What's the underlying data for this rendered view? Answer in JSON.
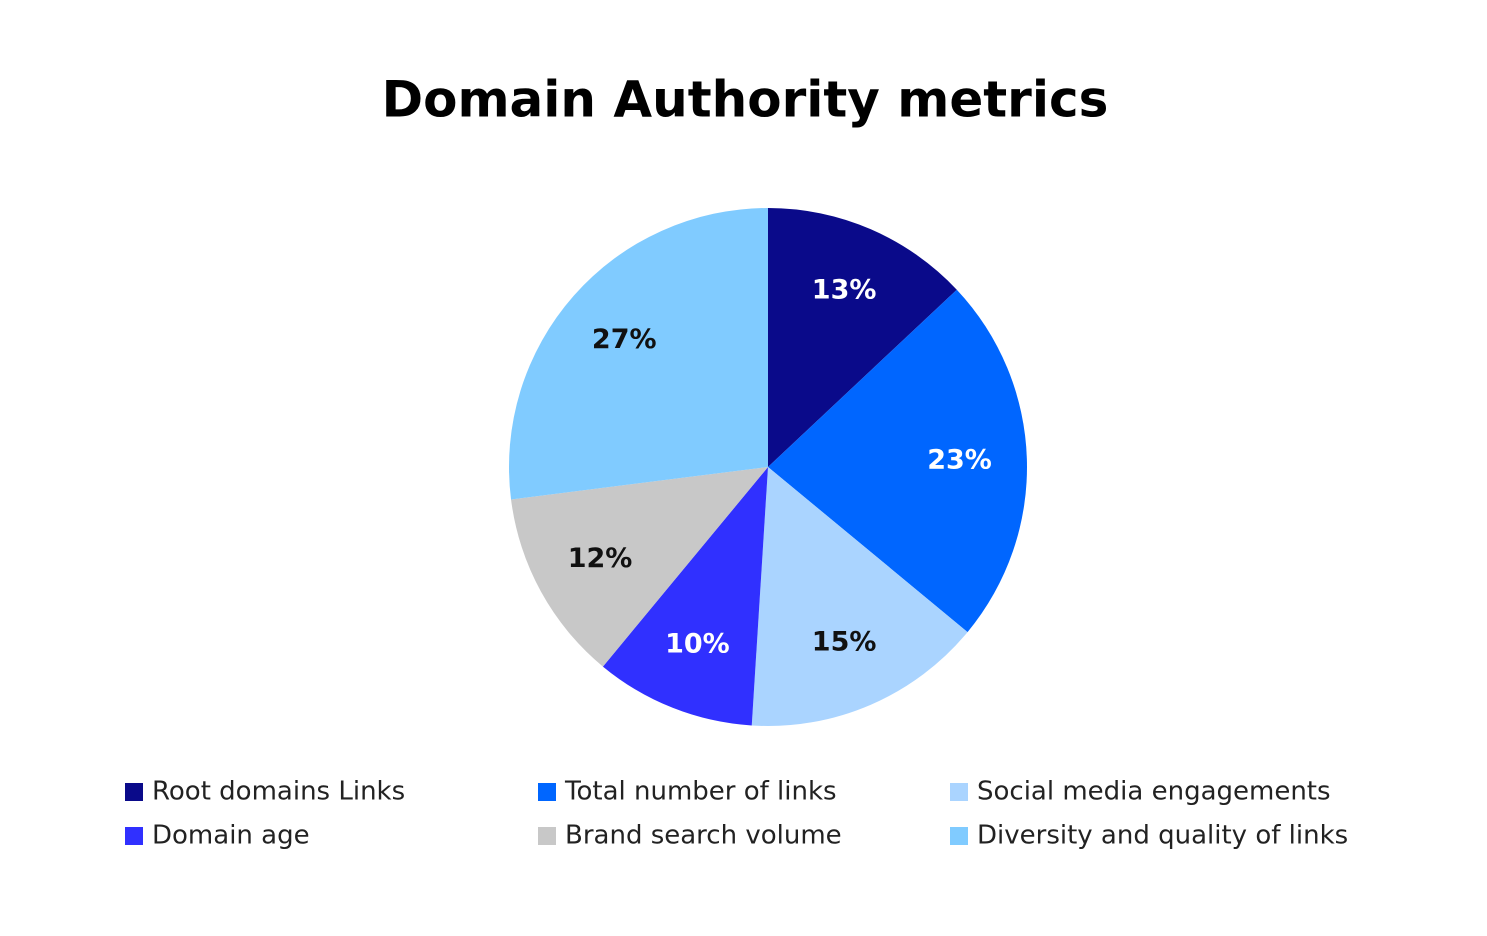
{
  "chart_data": {
    "type": "pie",
    "title": "Domain Authority metrics",
    "categories": [
      "Root domains Links",
      "Total number of links",
      "Social media engagements",
      "Domain age",
      "Brand search volume",
      "Diversity and quality of links"
    ],
    "values": [
      13,
      23,
      15,
      10,
      12,
      27
    ],
    "value_labels": [
      "13%",
      "23%",
      "15%",
      "10%",
      "12%",
      "27%"
    ],
    "colors": [
      "#0a0a8a",
      "#0066ff",
      "#aad4ff",
      "#3030ff",
      "#c8c8c8",
      "#80cbff"
    ],
    "legend": "bottom"
  }
}
